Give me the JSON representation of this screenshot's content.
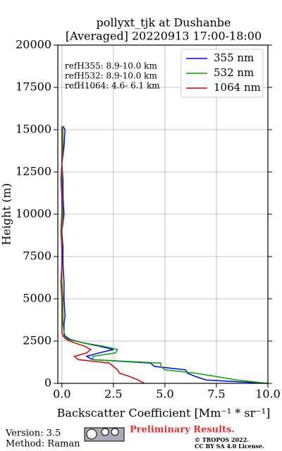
{
  "chart_data": {
    "type": "profile",
    "title": "pollyxt_tjk at Dushanbe",
    "subtitle": "[Averaged] 20220913 17:00-18:00",
    "xlabel": "Backscatter Coefficient [Mm⁻¹ * sr⁻¹]",
    "ylabel": "Height (m)",
    "y": [
      0,
      200,
      400,
      600,
      800,
      1000,
      1200,
      1400,
      1600,
      1800,
      2000,
      2200,
      2400,
      2600,
      2800,
      3000,
      3500,
      4000,
      5000,
      6000,
      7000,
      8000,
      9000,
      10000,
      11000,
      12000,
      13000,
      14000,
      15000,
      15200
    ],
    "series": [
      {
        "name": "355 nm",
        "color": "#0000ff",
        "values": [
          10.0,
          7.0,
          6.5,
          6.1,
          6.0,
          4.5,
          4.3,
          1.5,
          1.2,
          1.8,
          2.5,
          1.8,
          1.0,
          0.4,
          0.15,
          0.1,
          0.1,
          0.15,
          0.1,
          0.1,
          0.05,
          0.05,
          0.0,
          0.1,
          0.05,
          0.05,
          0.0,
          0.1,
          0.15,
          0.05
        ]
      },
      {
        "name": "532 nm",
        "color": "#00aa00",
        "values": [
          10.0,
          8.5,
          7.5,
          6.5,
          5.0,
          4.8,
          4.8,
          1.5,
          1.5,
          2.6,
          2.7,
          2.0,
          1.0,
          0.3,
          0.1,
          0.1,
          0.05,
          0.05,
          0.05,
          0.0,
          0.0,
          0.0,
          0.0,
          0.05,
          0.0,
          0.0,
          0.0,
          0.05,
          0.05,
          0.0
        ]
      },
      {
        "name": "1064 nm",
        "color": "#dd0000",
        "values": [
          4.0,
          3.7,
          3.3,
          2.8,
          2.7,
          2.5,
          2.3,
          0.8,
          0.6,
          1.2,
          1.4,
          1.1,
          0.6,
          0.2,
          0.05,
          0.0,
          0.0,
          0.0,
          0.0,
          -0.05,
          0.0,
          0.0,
          -0.05,
          0.0,
          0.0,
          -0.05,
          0.0,
          0.0,
          0.0,
          0.0
        ]
      }
    ],
    "xlim": [
      -0.2,
      10
    ],
    "ylim": [
      0,
      20000
    ],
    "xticks": [
      {
        "value": 0,
        "label": "0.0"
      },
      2.5,
      {
        "value": 5,
        "label": "5.0"
      },
      7.5,
      {
        "value": 10,
        "label": "10.0"
      }
    ],
    "yticks": [
      0,
      2500,
      5000,
      7500,
      10000,
      12500,
      15000,
      17500,
      20000
    ],
    "grid": true,
    "legend": "upper right",
    "annotations": [
      "refH355:  8.9-10.0 km",
      "refH532:  8.9-10.0 km",
      "refH1064:  4.6- 6.1 km"
    ]
  },
  "footer": {
    "version": "Version: 3.5",
    "method": "Method: Raman",
    "notice": "Preliminary Results.",
    "license_1": "© TROPOS 2022.",
    "license_2": "CC BY SA 4.0 License."
  }
}
